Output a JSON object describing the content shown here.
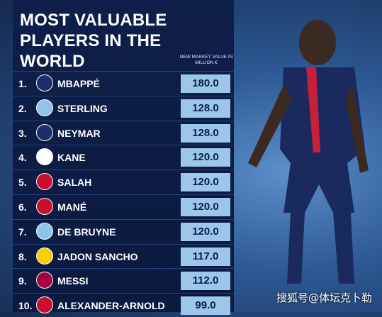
{
  "title": "MOST VALUABLE PLAYERS IN THE WORLD",
  "value_header": "NEW MARKET VALUE IN MILLION €",
  "rows": [
    {
      "rank": "1.",
      "name": "MBAPPÉ",
      "value": "180.0"
    },
    {
      "rank": "2.",
      "name": "STERLING",
      "value": "128.0"
    },
    {
      "rank": "3.",
      "name": "NEYMAR",
      "value": "128.0"
    },
    {
      "rank": "4.",
      "name": "KANE",
      "value": "120.0"
    },
    {
      "rank": "5.",
      "name": "SALAH",
      "value": "120.0"
    },
    {
      "rank": "6.",
      "name": "MANÉ",
      "value": "120.0"
    },
    {
      "rank": "7.",
      "name": "DE BRUYNE",
      "value": "120.0"
    },
    {
      "rank": "8.",
      "name": "JADON SANCHO",
      "value": "117.0"
    },
    {
      "rank": "9.",
      "name": "MESSI",
      "value": "112.0"
    },
    {
      "rank": "10.",
      "name": "ALEXANDER-ARNOLD",
      "value": "99.0"
    }
  ],
  "watermark": "搜狐号@体坛克卜勒"
}
